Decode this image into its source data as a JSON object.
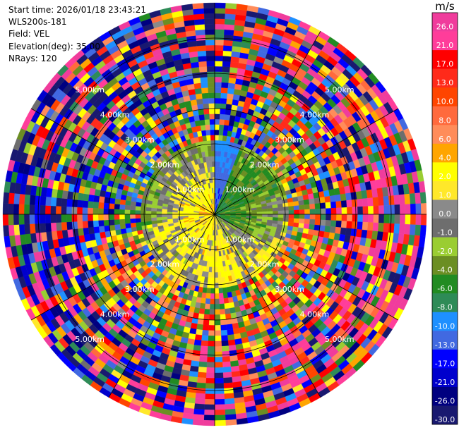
{
  "header": {
    "start_time_label": "Start time:",
    "start_time": "2026/01/18 23:43:21",
    "instrument": "WLS200s-181",
    "field_label": "Field:",
    "field": "VEL",
    "elevation_label": "Elevation(deg):",
    "elevation": "35.00",
    "nrays_label": "NRays:",
    "nrays": "120"
  },
  "chart_data": {
    "type": "heatmap",
    "projection": "polar (PPI scan)",
    "field": "VEL",
    "units": "m/s",
    "n_rays": 120,
    "range_km_max": 6.0,
    "range_ring_labels": [
      "1.00km",
      "2.00km",
      "3.00km",
      "4.00km",
      "5.00km"
    ],
    "grid": true,
    "colorbar": {
      "title": "m/s",
      "placement": "right",
      "tick_labels": [
        "26.0",
        "21.0",
        "17.0",
        "13.0",
        "10.0",
        "8.0",
        "6.0",
        "4.0",
        "2.0",
        "1.0",
        "0.0",
        "-1.0",
        "-2.0",
        "-4.0",
        "-6.0",
        "-8.0",
        "-10.0",
        "-13.0",
        "-17.0",
        "-21.0",
        "-26.0",
        "-30.0"
      ],
      "bins": [
        {
          "lo": 26,
          "hi": 30,
          "color": "#f03c9c"
        },
        {
          "lo": 21,
          "hi": 26,
          "color": "#ff3d9a"
        },
        {
          "lo": 17,
          "hi": 21,
          "color": "#ff0000"
        },
        {
          "lo": 13,
          "hi": 17,
          "color": "#ff2a1a"
        },
        {
          "lo": 10,
          "hi": 13,
          "color": "#ff4500"
        },
        {
          "lo": 8,
          "hi": 10,
          "color": "#ff6a3d"
        },
        {
          "lo": 6,
          "hi": 8,
          "color": "#ff8c5a"
        },
        {
          "lo": 4,
          "hi": 6,
          "color": "#ffa500"
        },
        {
          "lo": 2,
          "hi": 4,
          "color": "#ffff00"
        },
        {
          "lo": 1,
          "hi": 2,
          "color": "#ffe82a"
        },
        {
          "lo": 0,
          "hi": 1,
          "color": "#8a8a8a"
        },
        {
          "lo": -1,
          "hi": 0,
          "color": "#6e6e6e"
        },
        {
          "lo": -2,
          "hi": -1,
          "color": "#9acd32"
        },
        {
          "lo": -4,
          "hi": -2,
          "color": "#6b8e23"
        },
        {
          "lo": -6,
          "hi": -4,
          "color": "#228b22"
        },
        {
          "lo": -8,
          "hi": -6,
          "color": "#2e8b57"
        },
        {
          "lo": -10,
          "hi": -8,
          "color": "#1e90ff"
        },
        {
          "lo": -13,
          "hi": -10,
          "color": "#4169e1"
        },
        {
          "lo": -17,
          "hi": -13,
          "color": "#0000ff"
        },
        {
          "lo": -21,
          "hi": -17,
          "color": "#0000cd"
        },
        {
          "lo": -26,
          "hi": -21,
          "color": "#000080"
        },
        {
          "lo": -30,
          "hi": -26,
          "color": "#191970"
        }
      ]
    },
    "sectors": [
      {
        "az_from": 0,
        "az_to": 20,
        "near_range_vel": -13,
        "far_range_vel": -2
      },
      {
        "az_from": 20,
        "az_to": 75,
        "near_range_vel": -6,
        "far_range_vel": 4
      },
      {
        "az_from": 75,
        "az_to": 120,
        "near_range_vel": -6,
        "far_range_vel": 13
      },
      {
        "az_from": 120,
        "az_to": 155,
        "near_range_vel": -2,
        "far_range_vel": 10
      },
      {
        "az_from": 155,
        "az_to": 185,
        "near_range_vel": 1,
        "far_range_vel": 6
      },
      {
        "az_from": 185,
        "az_to": 260,
        "near_range_vel": 3,
        "far_range_vel": -4
      },
      {
        "az_from": 260,
        "az_to": 290,
        "near_range_vel": 5,
        "far_range_vel": -17
      },
      {
        "az_from": 290,
        "az_to": 360,
        "near_range_vel": 4,
        "far_range_vel": -13
      }
    ]
  }
}
